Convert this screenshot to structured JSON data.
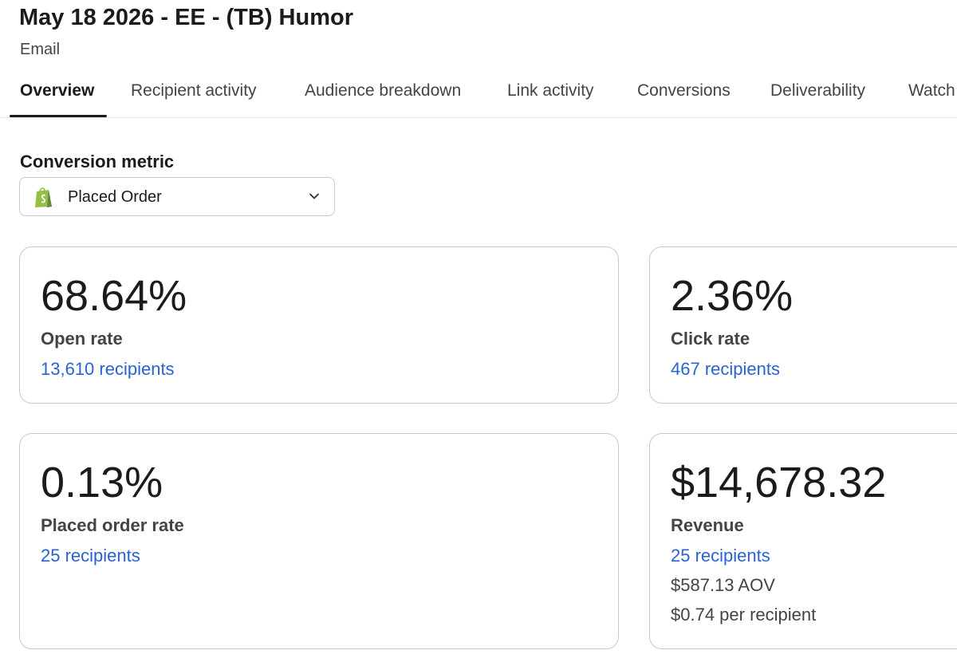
{
  "header": {
    "title": "May 18 2026 - EE - (TB) Humor",
    "subtitle": "Email"
  },
  "tabs": [
    "Overview",
    "Recipient activity",
    "Audience breakdown",
    "Link activity",
    "Conversions",
    "Deliverability",
    "Watch"
  ],
  "conversion_metric": {
    "label": "Conversion metric",
    "selected": "Placed Order"
  },
  "cards": [
    {
      "value": "68.64%",
      "label": "Open rate",
      "link": "13,610 recipients"
    },
    {
      "value": "2.36%",
      "label": "Click rate",
      "link": "467 recipients"
    },
    {
      "value": "0.13%",
      "label": "Placed order rate",
      "link": "25 recipients"
    },
    {
      "value": "$14,678.32",
      "label": "Revenue",
      "link": "25 recipients",
      "details": [
        "$587.13 AOV",
        "$0.74 per recipient"
      ]
    }
  ]
}
